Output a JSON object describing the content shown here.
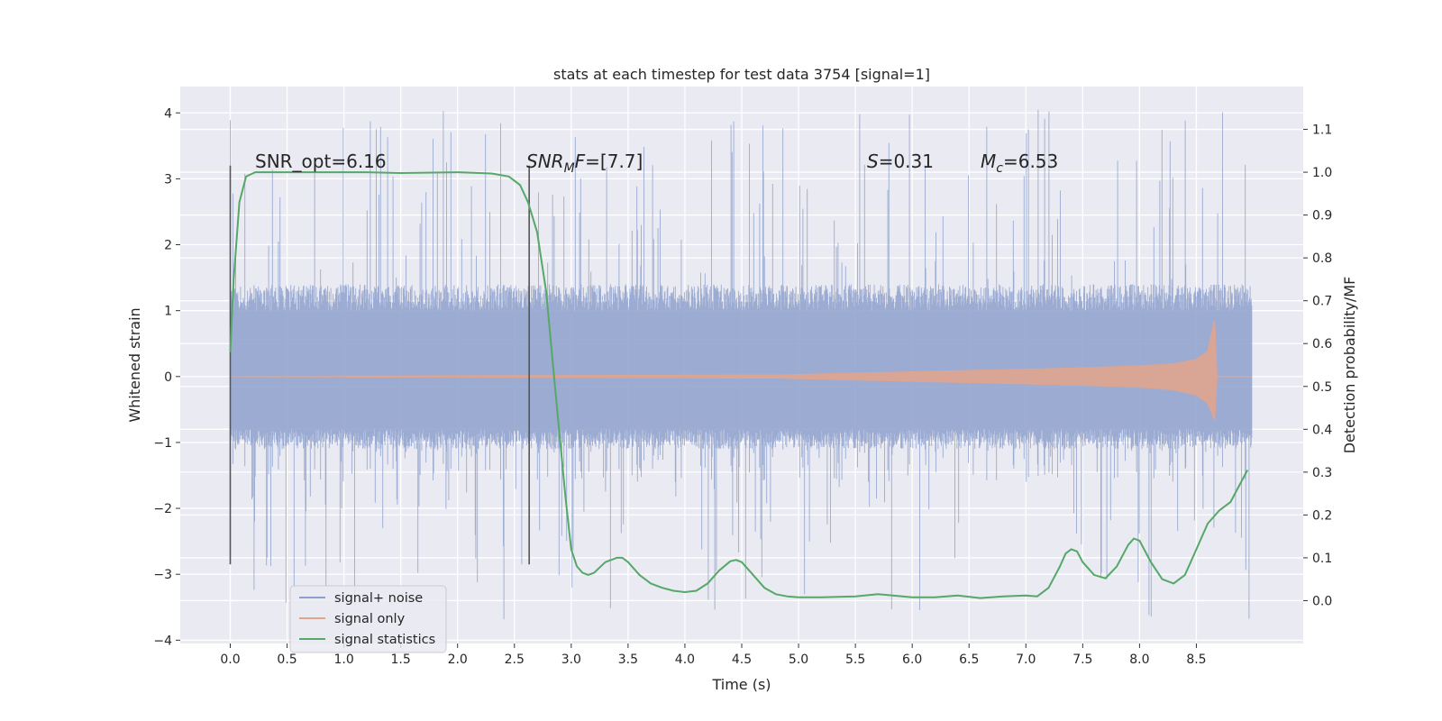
{
  "chart_data": {
    "type": "line",
    "title": "stats at each timestep for test data 3754 [signal=1]",
    "xlabel": "Time (s)",
    "ylabel": "Whitened strain",
    "ylabel_right": "Detection probability/MF",
    "xlim": [
      -0.44,
      9.44
    ],
    "ylim": [
      -4.05,
      4.4
    ],
    "ylim_right": [
      -0.1,
      1.2
    ],
    "x_ticks": [
      0.0,
      0.5,
      1.0,
      1.5,
      2.0,
      2.5,
      3.0,
      3.5,
      4.0,
      4.5,
      5.0,
      5.5,
      6.0,
      6.5,
      7.0,
      7.5,
      8.0,
      8.5
    ],
    "x_tick_labels": [
      "0.0",
      "0.5",
      "1.0",
      "1.5",
      "2.0",
      "2.5",
      "3.0",
      "3.5",
      "4.0",
      "4.5",
      "5.0",
      "5.5",
      "6.0",
      "6.5",
      "7.0",
      "7.5",
      "8.0",
      "8.5"
    ],
    "y_ticks": [
      4,
      3,
      2,
      1,
      0,
      -1,
      -2,
      -3,
      -4
    ],
    "y_tick_labels": [
      "4",
      "3",
      "2",
      "1",
      "0",
      "−1",
      "−2",
      "−3",
      "−4"
    ],
    "y_right_ticks": [
      1.1,
      1.0,
      0.9,
      0.8,
      0.7,
      0.6,
      0.5,
      0.4,
      0.3,
      0.2,
      0.1,
      0.0
    ],
    "y_right_tick_labels": [
      "1.1",
      "1.0",
      "0.9",
      "0.8",
      "0.7",
      "0.6",
      "0.5",
      "0.4",
      "0.3",
      "0.2",
      "0.1",
      "0.0"
    ],
    "vlines": [
      {
        "x": 0.0,
        "y_from": -2.85,
        "y_to": 3.2
      },
      {
        "x": 2.63,
        "y_from": -2.85,
        "y_to": 3.2
      }
    ],
    "annotations": {
      "snr_opt": {
        "prefix": "SNR_opt=",
        "value": "6.16"
      },
      "snr_mf": {
        "main": "SNR",
        "sub": "M",
        "tail": "F=",
        "value": "[7.7]"
      },
      "s": {
        "symbol": "S",
        "value": "=0.31"
      },
      "mc": {
        "symbol": "M",
        "sub": "c",
        "value": "=6.53"
      }
    },
    "series": [
      {
        "name": "signal+ noise",
        "color": "#8da0cb",
        "kind": "noise",
        "x_range": [
          0.0,
          8.99
        ],
        "band": [
          -1.1,
          1.4
        ],
        "spike_range": [
          -3.7,
          4.05
        ]
      },
      {
        "name": "signal only",
        "color": "#e0a58f",
        "kind": "chirp",
        "x": [
          0.0,
          4.8,
          5.5,
          6.0,
          6.5,
          7.0,
          7.5,
          8.0,
          8.3,
          8.5,
          8.6,
          8.66,
          8.68,
          8.99
        ],
        "upper": [
          0.0,
          0.02,
          0.05,
          0.07,
          0.09,
          0.11,
          0.13,
          0.16,
          0.19,
          0.26,
          0.38,
          0.85,
          0.0,
          0.0
        ],
        "lower": [
          0.0,
          -0.02,
          -0.05,
          -0.07,
          -0.09,
          -0.11,
          -0.13,
          -0.16,
          -0.2,
          -0.28,
          -0.4,
          -0.65,
          0.0,
          0.0
        ]
      },
      {
        "name": "signal statistics",
        "color": "#55a868",
        "kind": "line",
        "axis": "right",
        "x": [
          0.0,
          0.03,
          0.08,
          0.14,
          0.22,
          0.4,
          0.8,
          1.2,
          1.5,
          2.0,
          2.3,
          2.45,
          2.55,
          2.62,
          2.7,
          2.78,
          2.85,
          2.9,
          2.95,
          3.0,
          3.05,
          3.1,
          3.15,
          3.2,
          3.3,
          3.4,
          3.45,
          3.5,
          3.6,
          3.7,
          3.8,
          3.9,
          4.0,
          4.1,
          4.2,
          4.3,
          4.4,
          4.45,
          4.5,
          4.6,
          4.7,
          4.8,
          4.9,
          5.0,
          5.2,
          5.5,
          5.7,
          6.0,
          6.2,
          6.4,
          6.6,
          6.8,
          7.0,
          7.1,
          7.2,
          7.3,
          7.35,
          7.4,
          7.45,
          7.5,
          7.6,
          7.7,
          7.8,
          7.9,
          7.95,
          8.0,
          8.1,
          8.2,
          8.3,
          8.4,
          8.5,
          8.6,
          8.7,
          8.8,
          8.9,
          8.95
        ],
        "y": [
          0.58,
          0.75,
          0.93,
          0.99,
          1.0,
          1.0,
          1.0,
          1.0,
          0.998,
          1.0,
          0.997,
          0.99,
          0.97,
          0.93,
          0.86,
          0.72,
          0.52,
          0.38,
          0.24,
          0.12,
          0.08,
          0.065,
          0.06,
          0.065,
          0.09,
          0.1,
          0.1,
          0.09,
          0.06,
          0.04,
          0.03,
          0.023,
          0.02,
          0.023,
          0.04,
          0.07,
          0.092,
          0.095,
          0.09,
          0.06,
          0.03,
          0.015,
          0.01,
          0.008,
          0.008,
          0.01,
          0.015,
          0.008,
          0.008,
          0.012,
          0.006,
          0.01,
          0.012,
          0.01,
          0.03,
          0.08,
          0.11,
          0.12,
          0.115,
          0.09,
          0.06,
          0.052,
          0.08,
          0.13,
          0.145,
          0.14,
          0.09,
          0.05,
          0.04,
          0.06,
          0.12,
          0.18,
          0.21,
          0.23,
          0.28,
          0.305
        ]
      }
    ],
    "legend": {
      "position": "lower-left",
      "items": [
        "signal+ noise",
        "signal only",
        "signal statistics"
      ]
    }
  }
}
